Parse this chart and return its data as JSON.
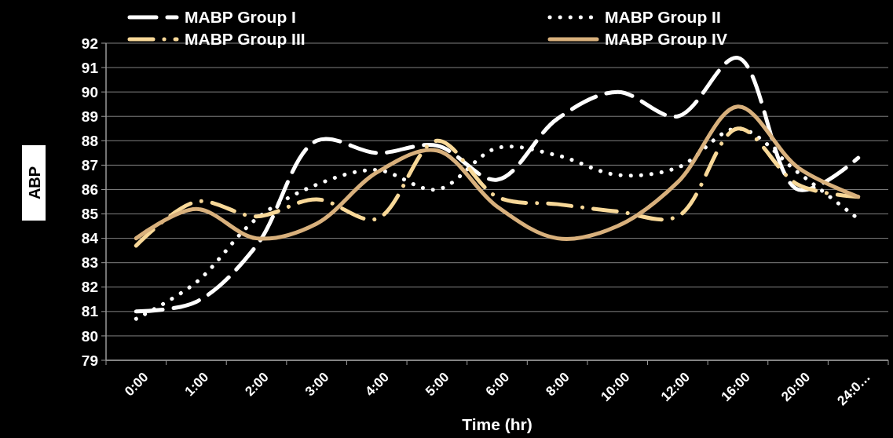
{
  "chart_data": {
    "type": "line",
    "xlabel": "Time (hr)",
    "ylabel": "ABP",
    "categories": [
      "0:00",
      "1:00",
      "2:00",
      "3:00",
      "4:00",
      "5:00",
      "6:00",
      "8:00",
      "10:00",
      "12:00",
      "16:00",
      "20:00",
      "24:0…"
    ],
    "series": [
      {
        "name": "MABP Group I",
        "color": "#ffffff",
        "line_style": "dashed",
        "values": [
          81.0,
          81.4,
          83.7,
          88.0,
          87.5,
          87.8,
          86.4,
          88.9,
          90.0,
          89.0,
          91.4,
          86.0,
          87.3
        ]
      },
      {
        "name": "MABP Group II",
        "color": "#ffffff",
        "line_style": "dotted",
        "values": [
          80.7,
          82.2,
          84.8,
          86.2,
          86.8,
          86.0,
          87.7,
          87.4,
          86.6,
          86.9,
          88.5,
          86.7,
          84.8
        ]
      },
      {
        "name": "MABP Group III",
        "color": "#f8d898",
        "line_style": "dashdot",
        "values": [
          83.7,
          85.5,
          84.9,
          85.6,
          84.8,
          88.0,
          85.7,
          85.4,
          85.1,
          84.9,
          88.5,
          86.2,
          85.7
        ]
      },
      {
        "name": "MABP Group IV",
        "color": "#d8b07c",
        "line_style": "solid",
        "values": [
          84.0,
          85.2,
          84.0,
          84.6,
          86.7,
          87.6,
          85.3,
          84.0,
          84.5,
          86.3,
          89.4,
          86.9,
          85.7
        ]
      }
    ],
    "ylim": [
      79,
      92
    ],
    "yticks": [
      79,
      80,
      81,
      82,
      83,
      84,
      85,
      86,
      87,
      88,
      89,
      90,
      91,
      92
    ],
    "grid": "y",
    "legend": "top",
    "marker": "none"
  }
}
